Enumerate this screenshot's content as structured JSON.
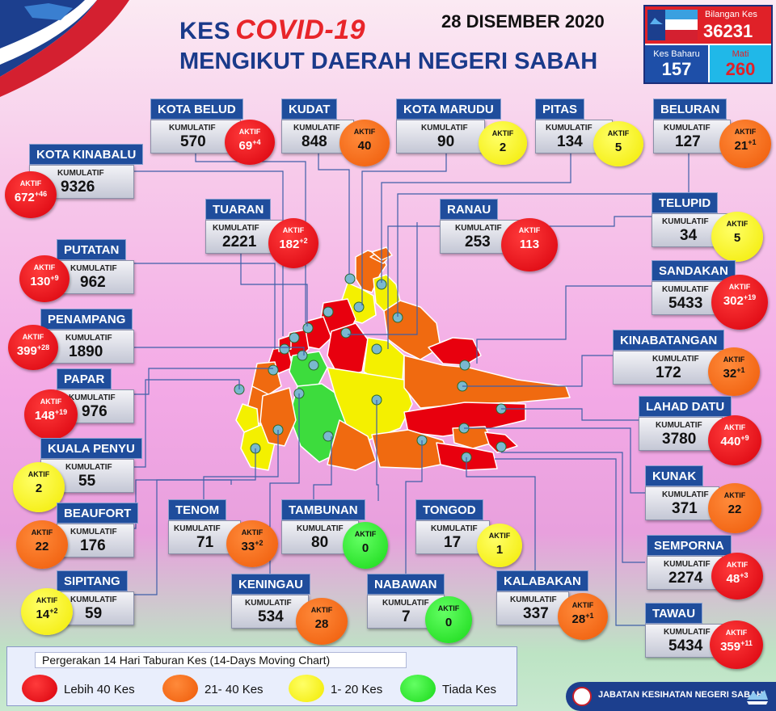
{
  "header": {
    "title_prefix": "KES",
    "title_covid": "COVID-19",
    "subtitle": "MENGIKUT DAERAH NEGERI SABAH",
    "date": "28 DISEMBER 2020"
  },
  "summary": {
    "total_label": "Bilangan Kes",
    "total_value": "36231",
    "new_label": "Kes Baharu",
    "new_value": "157",
    "death_label": "Mati",
    "death_value": "260"
  },
  "labels": {
    "kumulatif": "KUMULATIF",
    "aktif": "AKTIF"
  },
  "districts": [
    {
      "name": "KOTA BELUD",
      "kumulatif": "570",
      "aktif": "69",
      "sup": "+4",
      "level": "red"
    },
    {
      "name": "KUDAT",
      "kumulatif": "848",
      "aktif": "40",
      "sup": "",
      "level": "orange"
    },
    {
      "name": "KOTA MARUDU",
      "kumulatif": "90",
      "aktif": "2",
      "sup": "",
      "level": "yellow"
    },
    {
      "name": "PITAS",
      "kumulatif": "134",
      "aktif": "5",
      "sup": "",
      "level": "yellow"
    },
    {
      "name": "BELURAN",
      "kumulatif": "127",
      "aktif": "21",
      "sup": "+1",
      "level": "orange"
    },
    {
      "name": "KOTA KINABALU",
      "kumulatif": "9326",
      "aktif": "672",
      "sup": "+46",
      "level": "red"
    },
    {
      "name": "TUARAN",
      "kumulatif": "2221",
      "aktif": "182",
      "sup": "+2",
      "level": "red"
    },
    {
      "name": "RANAU",
      "kumulatif": "253",
      "aktif": "113",
      "sup": "",
      "level": "red"
    },
    {
      "name": "TELUPID",
      "kumulatif": "34",
      "aktif": "5",
      "sup": "",
      "level": "yellow"
    },
    {
      "name": "PUTATAN",
      "kumulatif": "962",
      "aktif": "130",
      "sup": "+9",
      "level": "red"
    },
    {
      "name": "SANDAKAN",
      "kumulatif": "5433",
      "aktif": "302",
      "sup": "+19",
      "level": "red"
    },
    {
      "name": "PENAMPANG",
      "kumulatif": "1890",
      "aktif": "399",
      "sup": "+28",
      "level": "red"
    },
    {
      "name": "KINABATANGAN",
      "kumulatif": "172",
      "aktif": "32",
      "sup": "+1",
      "level": "orange"
    },
    {
      "name": "PAPAR",
      "kumulatif": "976",
      "aktif": "148",
      "sup": "+19",
      "level": "red"
    },
    {
      "name": "LAHAD DATU",
      "kumulatif": "3780",
      "aktif": "440",
      "sup": "+9",
      "level": "red"
    },
    {
      "name": "KUALA PENYU",
      "kumulatif": "55",
      "aktif": "2",
      "sup": "",
      "level": "yellow"
    },
    {
      "name": "KUNAK",
      "kumulatif": "371",
      "aktif": "22",
      "sup": "",
      "level": "orange"
    },
    {
      "name": "BEAUFORT",
      "kumulatif": "176",
      "aktif": "22",
      "sup": "",
      "level": "orange"
    },
    {
      "name": "TENOM",
      "kumulatif": "71",
      "aktif": "33",
      "sup": "+2",
      "level": "orange"
    },
    {
      "name": "TAMBUNAN",
      "kumulatif": "80",
      "aktif": "0",
      "sup": "",
      "level": "green"
    },
    {
      "name": "TONGOD",
      "kumulatif": "17",
      "aktif": "1",
      "sup": "",
      "level": "yellow"
    },
    {
      "name": "SEMPORNA",
      "kumulatif": "2274",
      "aktif": "48",
      "sup": "+3",
      "level": "red"
    },
    {
      "name": "SIPITANG",
      "kumulatif": "59",
      "aktif": "14",
      "sup": "+2",
      "level": "yellow"
    },
    {
      "name": "KENINGAU",
      "kumulatif": "534",
      "aktif": "28",
      "sup": "",
      "level": "orange"
    },
    {
      "name": "NABAWAN",
      "kumulatif": "7",
      "aktif": "0",
      "sup": "",
      "level": "green"
    },
    {
      "name": "KALABAKAN",
      "kumulatif": "337",
      "aktif": "28",
      "sup": "+1",
      "level": "orange"
    },
    {
      "name": "TAWAU",
      "kumulatif": "5434",
      "aktif": "359",
      "sup": "+11",
      "level": "red"
    }
  ],
  "legend": {
    "title": "Pergerakan 14 Hari Taburan Kes (14-Days Moving Chart)",
    "items": [
      {
        "label": "Lebih 40 Kes",
        "color": "#e8000e"
      },
      {
        "label": "21- 40 Kes",
        "color": "#f06a10"
      },
      {
        "label": "1- 20 Kes",
        "color": "#f4f000"
      },
      {
        "label": "Tiada Kes",
        "color": "#3ddc3d"
      }
    ]
  },
  "footer": {
    "agency": "JABATAN KESIHATAN NEGERI SABAH"
  },
  "colors": {
    "red": "#e8000e",
    "orange": "#f06a10",
    "yellow": "#f4f000",
    "green": "#3ddc3d",
    "navy": "#1f4d9c"
  }
}
